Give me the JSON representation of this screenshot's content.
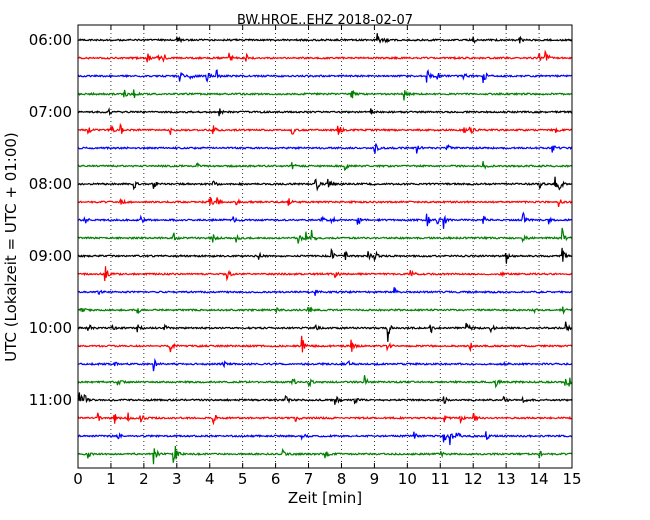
{
  "chart_data": {
    "type": "line",
    "title": "BW.HROE..EHZ 2018-02-07",
    "xlabel": "Zeit  [min]",
    "ylabel": "UTC (Lokalzeit = UTC + 01:00)",
    "xlim": [
      0,
      15
    ],
    "x_ticks": [
      "0",
      "1",
      "2",
      "3",
      "4",
      "5",
      "6",
      "7",
      "8",
      "9",
      "10",
      "11",
      "12",
      "13",
      "14",
      "15"
    ],
    "y_tick_labels": [
      "06:00",
      "07:00",
      "08:00",
      "09:00",
      "10:00",
      "11:00"
    ],
    "grid": "vertical dotted",
    "trace_colors": [
      "#000000",
      "#ff0000",
      "#0000ff",
      "#008000"
    ],
    "traces": [
      {
        "start": "06:00",
        "events": [
          [
            3.0,
            0.45
          ],
          [
            9.1,
            0.55
          ],
          [
            9.3,
            0.25
          ],
          [
            12.0,
            0.3
          ],
          [
            13.4,
            0.25
          ]
        ]
      },
      {
        "start": "06:15",
        "events": [
          [
            2.1,
            0.4
          ],
          [
            2.4,
            0.45
          ],
          [
            2.6,
            0.3
          ],
          [
            4.6,
            0.4
          ],
          [
            5.1,
            0.3
          ],
          [
            14.2,
            0.55
          ],
          [
            14.0,
            0.3
          ]
        ]
      },
      {
        "start": "06:30",
        "events": [
          [
            3.1,
            0.4
          ],
          [
            3.4,
            0.3
          ],
          [
            3.9,
            0.4
          ],
          [
            4.2,
            0.45
          ],
          [
            10.6,
            0.55
          ],
          [
            11.7,
            0.5
          ],
          [
            12.3,
            0.9
          ],
          [
            10.9,
            0.3
          ]
        ]
      },
      {
        "start": "06:45",
        "events": [
          [
            1.4,
            0.35
          ],
          [
            1.7,
            0.3
          ],
          [
            8.3,
            0.55
          ],
          [
            9.9,
            0.45
          ]
        ]
      },
      {
        "start": "07:00",
        "events": [
          [
            0.9,
            0.3
          ],
          [
            4.3,
            0.25
          ],
          [
            8.9,
            0.25
          ]
        ]
      },
      {
        "start": "07:15",
        "events": [
          [
            0.3,
            0.35
          ],
          [
            1.0,
            0.4
          ],
          [
            1.3,
            0.3
          ],
          [
            2.8,
            0.3
          ],
          [
            4.1,
            0.35
          ],
          [
            6.5,
            0.4
          ],
          [
            7.9,
            0.45
          ],
          [
            11.9,
            0.45
          ],
          [
            11.7,
            0.25
          ],
          [
            14.5,
            0.25
          ]
        ]
      },
      {
        "start": "07:30",
        "events": [
          [
            9.0,
            0.55
          ],
          [
            10.3,
            0.35
          ],
          [
            11.2,
            0.25
          ],
          [
            14.4,
            0.3
          ]
        ]
      },
      {
        "start": "07:45",
        "events": [
          [
            3.6,
            0.25
          ],
          [
            6.5,
            0.25
          ],
          [
            8.1,
            0.25
          ],
          [
            12.3,
            0.25
          ]
        ]
      },
      {
        "start": "08:00",
        "events": [
          [
            1.7,
            0.35
          ],
          [
            2.3,
            0.3
          ],
          [
            4.1,
            0.35
          ],
          [
            7.2,
            0.9
          ],
          [
            7.6,
            0.3
          ],
          [
            14.0,
            0.5
          ],
          [
            14.5,
            0.55
          ],
          [
            14.6,
            0.5
          ]
        ]
      },
      {
        "start": "08:15",
        "events": [
          [
            1.3,
            0.25
          ],
          [
            4.0,
            0.5
          ],
          [
            4.2,
            0.4
          ],
          [
            4.8,
            0.3
          ],
          [
            6.4,
            0.3
          ],
          [
            14.6,
            0.3
          ]
        ]
      },
      {
        "start": "08:30",
        "events": [
          [
            0.2,
            0.3
          ],
          [
            1.9,
            0.3
          ],
          [
            4.7,
            0.4
          ],
          [
            7.4,
            0.45
          ],
          [
            7.7,
            0.35
          ],
          [
            8.5,
            0.4
          ],
          [
            10.6,
            0.55
          ],
          [
            10.9,
            0.35
          ],
          [
            11.1,
            0.6
          ],
          [
            12.3,
            0.3
          ],
          [
            13.5,
            0.6
          ],
          [
            14.3,
            0.3
          ]
        ]
      },
      {
        "start": "08:45",
        "events": [
          [
            2.9,
            0.35
          ],
          [
            4.1,
            0.3
          ],
          [
            4.8,
            0.3
          ],
          [
            6.7,
            0.45
          ],
          [
            6.9,
            0.5
          ],
          [
            7.1,
            0.55
          ],
          [
            13.5,
            0.25
          ],
          [
            14.7,
            0.6
          ]
        ]
      },
      {
        "start": "09:00",
        "events": [
          [
            7.7,
            0.35
          ],
          [
            8.1,
            0.4
          ],
          [
            8.8,
            0.4
          ],
          [
            9.0,
            0.45
          ],
          [
            13.0,
            0.55
          ],
          [
            14.7,
            0.55
          ],
          [
            5.5,
            0.25
          ]
        ]
      },
      {
        "start": "09:15",
        "events": [
          [
            0.8,
            0.8
          ],
          [
            4.5,
            0.6
          ],
          [
            7.8,
            0.35
          ],
          [
            10.1,
            0.35
          ],
          [
            12.8,
            0.4
          ]
        ]
      },
      {
        "start": "09:30",
        "events": [
          [
            0.6,
            0.25
          ],
          [
            7.2,
            0.25
          ],
          [
            9.6,
            0.25
          ]
        ]
      },
      {
        "start": "09:45",
        "events": [
          [
            0.1,
            0.3
          ],
          [
            1.8,
            0.3
          ],
          [
            6.0,
            0.3
          ],
          [
            7.0,
            0.3
          ],
          [
            13.8,
            0.3
          ],
          [
            14.7,
            0.3
          ]
        ]
      },
      {
        "start": "10:00",
        "events": [
          [
            0.3,
            0.4
          ],
          [
            1.0,
            0.3
          ],
          [
            1.8,
            0.3
          ],
          [
            2.6,
            0.3
          ],
          [
            7.2,
            0.3
          ],
          [
            9.4,
            1.0
          ],
          [
            10.7,
            0.45
          ],
          [
            11.8,
            0.5
          ],
          [
            12.5,
            0.5
          ],
          [
            14.8,
            0.45
          ]
        ]
      },
      {
        "start": "10:15",
        "events": [
          [
            2.8,
            0.65
          ],
          [
            6.8,
            0.6
          ],
          [
            8.3,
            0.45
          ],
          [
            9.4,
            0.3
          ],
          [
            11.9,
            0.45
          ]
        ]
      },
      {
        "start": "10:30",
        "events": [
          [
            1.1,
            0.3
          ],
          [
            2.3,
            0.45
          ],
          [
            4.4,
            0.25
          ],
          [
            8.2,
            0.25
          ],
          [
            12.9,
            0.25
          ]
        ]
      },
      {
        "start": "10:45",
        "events": [
          [
            1.2,
            0.3
          ],
          [
            6.5,
            0.35
          ],
          [
            7.0,
            0.35
          ],
          [
            8.7,
            0.4
          ],
          [
            12.7,
            0.25
          ],
          [
            14.8,
            0.5
          ],
          [
            14.9,
            0.45
          ]
        ]
      },
      {
        "start": "11:00",
        "events": [
          [
            0.05,
            0.55
          ],
          [
            0.2,
            0.35
          ],
          [
            6.3,
            0.35
          ],
          [
            7.8,
            0.45
          ],
          [
            8.4,
            0.3
          ],
          [
            11.1,
            0.35
          ],
          [
            12.9,
            0.35
          ],
          [
            13.5,
            0.25
          ]
        ]
      },
      {
        "start": "11:15",
        "events": [
          [
            0.6,
            0.3
          ],
          [
            1.1,
            0.5
          ],
          [
            1.5,
            0.45
          ],
          [
            1.9,
            0.4
          ],
          [
            4.1,
            0.55
          ],
          [
            6.6,
            0.3
          ],
          [
            11.1,
            0.35
          ],
          [
            11.6,
            0.35
          ],
          [
            12.0,
            0.4
          ]
        ]
      },
      {
        "start": "11:30",
        "events": [
          [
            1.2,
            0.25
          ],
          [
            6.8,
            0.25
          ],
          [
            10.2,
            0.25
          ],
          [
            11.1,
            0.55
          ],
          [
            11.3,
            0.5
          ],
          [
            11.5,
            0.35
          ],
          [
            12.4,
            0.25
          ]
        ]
      },
      {
        "start": "11:45",
        "events": [
          [
            0.3,
            0.25
          ],
          [
            2.3,
            1.0
          ],
          [
            2.9,
            1.4
          ],
          [
            6.2,
            0.3
          ],
          [
            7.5,
            0.3
          ],
          [
            11.0,
            0.25
          ],
          [
            14.0,
            0.35
          ]
        ]
      }
    ]
  }
}
